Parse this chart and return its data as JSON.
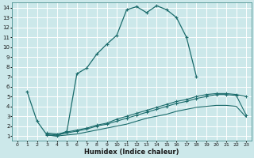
{
  "xlabel": "Humidex (Indice chaleur)",
  "bg_color": "#cce8ea",
  "grid_color": "#ffffff",
  "line_color": "#1a6b6b",
  "xlim": [
    -0.5,
    23.5
  ],
  "ylim": [
    0.5,
    14.5
  ],
  "xticks": [
    0,
    1,
    2,
    3,
    4,
    5,
    6,
    7,
    8,
    9,
    10,
    11,
    12,
    13,
    14,
    15,
    16,
    17,
    18,
    19,
    20,
    21,
    22,
    23
  ],
  "yticks": [
    1,
    2,
    3,
    4,
    5,
    6,
    7,
    8,
    9,
    10,
    11,
    12,
    13,
    14
  ],
  "curve1_x": [
    1,
    2,
    3,
    4,
    5,
    6,
    7,
    8,
    9,
    10,
    11,
    12,
    13,
    14,
    15,
    16,
    17,
    18
  ],
  "curve1_y": [
    5.5,
    2.5,
    1.1,
    1.0,
    1.5,
    7.3,
    7.9,
    9.3,
    10.3,
    11.2,
    13.8,
    14.1,
    13.5,
    14.2,
    13.8,
    13.0,
    11.0,
    7.0
  ],
  "curve2_x": [
    3,
    4,
    5,
    6,
    7,
    8,
    9,
    10,
    11,
    12,
    13,
    14,
    15,
    16,
    17,
    18,
    19,
    20,
    21,
    22,
    23
  ],
  "curve2_y": [
    1.2,
    1.1,
    1.3,
    1.5,
    1.7,
    2.0,
    2.2,
    2.5,
    2.8,
    3.1,
    3.4,
    3.7,
    4.0,
    4.3,
    4.5,
    4.8,
    5.0,
    5.2,
    5.2,
    5.1,
    3.1
  ],
  "curve3_x": [
    3,
    4,
    5,
    6,
    7,
    8,
    9,
    10,
    11,
    12,
    13,
    14,
    15,
    16,
    17,
    18,
    19,
    20,
    21,
    22,
    23
  ],
  "curve3_y": [
    1.1,
    1.0,
    1.1,
    1.2,
    1.4,
    1.6,
    1.8,
    2.0,
    2.2,
    2.5,
    2.8,
    3.0,
    3.2,
    3.5,
    3.7,
    3.9,
    4.0,
    4.1,
    4.1,
    4.0,
    2.9
  ],
  "curve4_x": [
    3,
    4,
    5,
    6,
    7,
    8,
    9,
    10,
    11,
    12,
    13,
    14,
    15,
    16,
    17,
    18,
    19,
    20,
    21,
    22,
    23
  ],
  "curve4_y": [
    1.3,
    1.2,
    1.4,
    1.6,
    1.8,
    2.1,
    2.3,
    2.7,
    3.0,
    3.3,
    3.6,
    3.9,
    4.2,
    4.5,
    4.7,
    5.0,
    5.2,
    5.3,
    5.3,
    5.2,
    5.0
  ]
}
